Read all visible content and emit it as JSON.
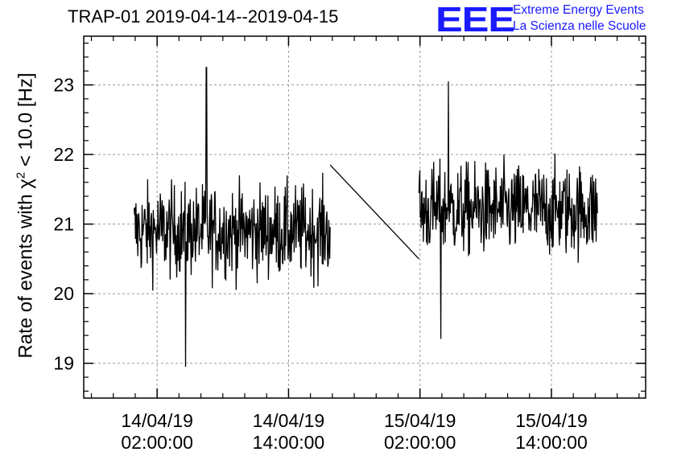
{
  "header": {
    "title": "TRAP-01 2019-04-14--2019-04-15",
    "logo_text": "EEE",
    "org_line1": "Extreme Energy Events",
    "org_line2": "La Scienza nelle Scuole"
  },
  "axes": {
    "ylabel_prefix": "Rate of events with χ",
    "ylabel_sup": "2",
    "ylabel_suffix": " < 10.0 [Hz]"
  },
  "colors": {
    "line": "#000000",
    "grid": "#9a9a9a",
    "logo": "#1a1aff"
  },
  "chart_data": {
    "type": "line",
    "title": "TRAP-01 2019-04-14--2019-04-15",
    "ylabel": "Rate of events with χ² < 10.0 [Hz]",
    "xlabel": "",
    "x_unit": "hours since 2019-04-13 22:00",
    "xlim": [
      -2.7,
      48.6
    ],
    "ylim": [
      18.5,
      23.7
    ],
    "yticks": [
      19,
      20,
      21,
      22,
      23
    ],
    "xticks": [
      {
        "value": 4,
        "line1": "14/04/19",
        "line2": "02:00:00"
      },
      {
        "value": 16,
        "line1": "14/04/19",
        "line2": "14:00:00"
      },
      {
        "value": 28,
        "line1": "15/04/19",
        "line2": "02:00:00"
      },
      {
        "value": 40,
        "line1": "15/04/19",
        "line2": "14:00:00"
      }
    ],
    "grid": true,
    "series": [
      {
        "segments": [
          {
            "t_start": 1.9,
            "t_end": 19.8,
            "mean": 20.9,
            "spread": 0.55,
            "n": 420
          },
          {
            "t_start": 27.9,
            "t_end": 44.2,
            "mean": 21.2,
            "spread": 0.55,
            "n": 400
          }
        ],
        "gap_line": [
          [
            19.8,
            21.85
          ],
          [
            27.9,
            20.5
          ]
        ],
        "extremes": [
          {
            "t": 6.6,
            "v": 18.95
          },
          {
            "t": 8.5,
            "v": 23.25
          },
          {
            "t": 29.9,
            "v": 19.35
          },
          {
            "t": 30.6,
            "v": 23.05
          }
        ]
      }
    ]
  }
}
